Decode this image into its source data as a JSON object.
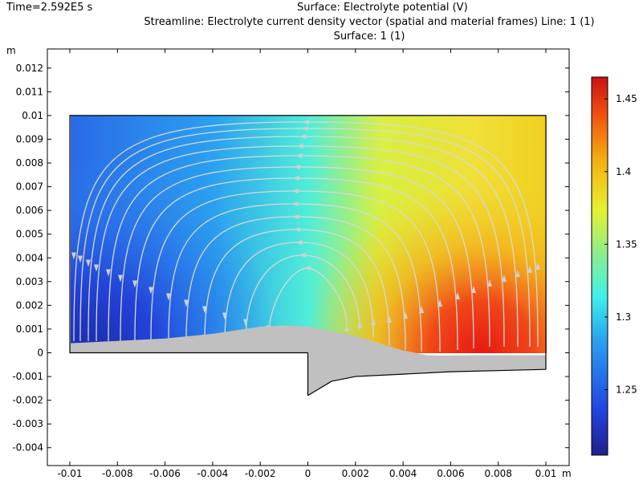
{
  "header": {
    "time_label": "Time=2.592E5 s",
    "title_line_1": "Surface: Electrolyte potential (V)",
    "title_line_2": "Streamline: Electrolyte current density vector (spatial and material frames)  Line: 1 (1)",
    "title_line_3": "Surface: 1 (1)"
  },
  "chart_data": {
    "type": "heatmap",
    "title": "Surface: Electrolyte potential (V)",
    "xlabel": "m",
    "ylabel": "m",
    "xlim": [
      -0.0113,
      0.0112
    ],
    "ylim": [
      -0.0045,
      0.0128
    ],
    "x_ticks": [
      "-0.01",
      "-0.008",
      "-0.006",
      "-0.004",
      "-0.002",
      "0",
      "0.002",
      "0.004",
      "0.006",
      "0.008",
      "0.01"
    ],
    "x_tick_values": [
      -0.01,
      -0.008,
      -0.006,
      -0.004,
      -0.002,
      0,
      0.002,
      0.004,
      0.006,
      0.008,
      0.01
    ],
    "y_ticks": [
      "-0.004",
      "-0.003",
      "-0.002",
      "-0.001",
      "0",
      "0.001",
      "0.002",
      "0.003",
      "0.004",
      "0.005",
      "0.006",
      "0.007",
      "0.008",
      "0.009",
      "0.01",
      "0.011",
      "0.012"
    ],
    "y_tick_values": [
      -0.004,
      -0.003,
      -0.002,
      -0.001,
      0,
      0.001,
      0.002,
      0.003,
      0.004,
      0.005,
      0.006,
      0.007,
      0.008,
      0.009,
      0.01,
      0.011,
      0.012
    ],
    "colorbar": {
      "range": [
        1.205,
        1.465
      ],
      "ticks": [
        "1.25",
        "1.3",
        "1.35",
        "1.4",
        "1.45"
      ],
      "tick_values": [
        1.25,
        1.3,
        1.35,
        1.4,
        1.45
      ],
      "colormap": [
        "#20208a",
        "#2244e0",
        "#2a9ff0",
        "#3ff0e8",
        "#98ee80",
        "#e8f030",
        "#f4b010",
        "#f05010",
        "#c81212"
      ]
    },
    "domain_outline": [
      [
        -0.01,
        0.0
      ],
      [
        -0.01,
        0.01
      ],
      [
        0.01,
        0.01
      ],
      [
        0.01,
        -0.0007
      ],
      [
        0.0,
        0.0
      ]
    ],
    "deposit_surface": [
      [
        -0.01,
        0.0004
      ],
      [
        -0.008,
        0.0005
      ],
      [
        -0.006,
        0.0006
      ],
      [
        -0.004,
        0.0008
      ],
      [
        -0.002,
        0.0011
      ],
      [
        -0.001,
        0.00115
      ],
      [
        0.0,
        0.0011
      ],
      [
        0.001,
        0.0009
      ],
      [
        0.002,
        0.0007
      ],
      [
        0.003,
        0.0004
      ],
      [
        0.004,
        0.0001
      ],
      [
        0.005,
        -0.0001
      ],
      [
        0.0055,
        -0.00012
      ],
      [
        0.007,
        -0.0001
      ],
      [
        0.01,
        -0.0001
      ]
    ],
    "electrode_bottom": [
      [
        0.0,
        -0.0018
      ],
      [
        0.001,
        -0.0012
      ],
      [
        0.002,
        -0.001
      ],
      [
        0.004,
        -0.0009
      ],
      [
        0.006,
        -0.0008
      ],
      [
        0.01,
        -0.0007
      ]
    ],
    "colors": {
      "deposit": "#c0c0c0",
      "streamline": "#d9d9d9",
      "outline": "#000000"
    }
  }
}
